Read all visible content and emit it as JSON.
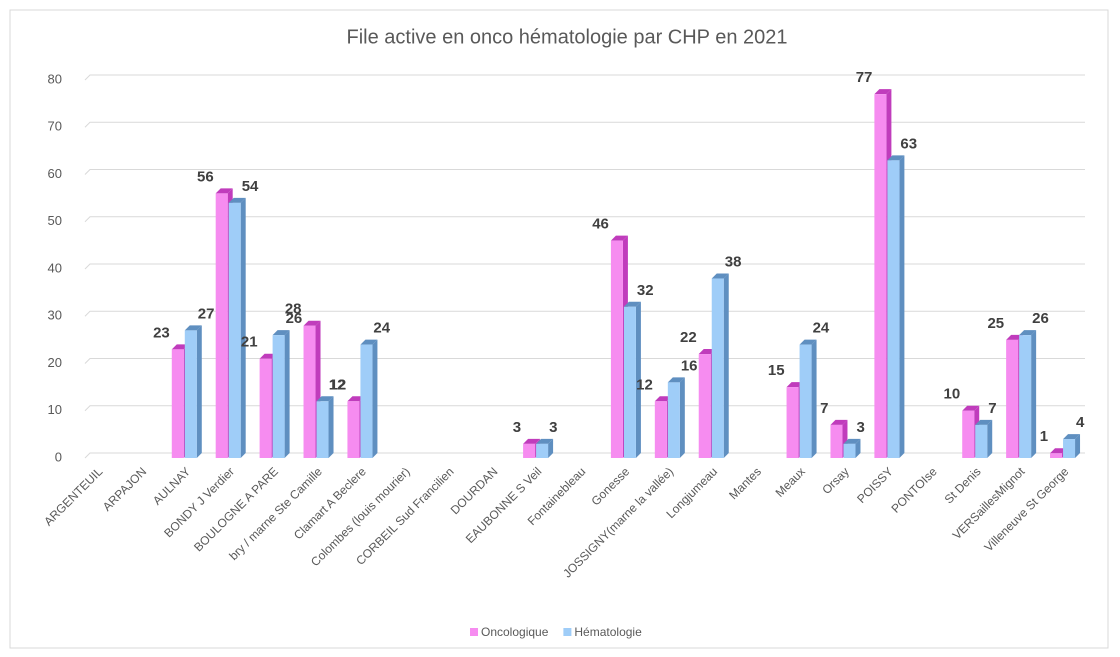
{
  "chart_data": {
    "type": "bar3d",
    "title": "File active en onco hématologie par CHP en 2021",
    "categories": [
      "ARGENTEUIL",
      "ARPAJON",
      "AULNAY",
      "BONDY J Verdier",
      "BOULOGNE A PARE",
      "bry / marne Ste Camille",
      "Clamart A Beclere",
      "Colombes (louis mourier)",
      "CORBEIL Sud Francilien",
      "DOURDAN",
      "EAUBONNE S Veil",
      "Fontainebleau",
      "Gonesse",
      "JOSSIGNY(marne la vallée)",
      "Longjumeau",
      "Mantes",
      "Meaux",
      "Orsay",
      "POISSY",
      "PONTOIse",
      "St Denis",
      "VERSaillesMignot",
      "Villeneuve St George"
    ],
    "series": [
      {
        "name": "Oncologique",
        "color": "#f68cf0",
        "side": "#c03cbc",
        "values": [
          null,
          null,
          23,
          56,
          21,
          28,
          12,
          null,
          null,
          null,
          3,
          null,
          46,
          12,
          22,
          null,
          15,
          7,
          77,
          null,
          10,
          25,
          1
        ]
      },
      {
        "name": "Hématologie",
        "color": "#9fcdf8",
        "side": "#5f8fc0",
        "values": [
          null,
          null,
          27,
          54,
          26,
          12,
          24,
          null,
          null,
          null,
          3,
          null,
          32,
          16,
          38,
          null,
          24,
          3,
          63,
          null,
          7,
          26,
          4
        ]
      }
    ],
    "ylim": [
      0,
      80
    ],
    "yticks": [
      0,
      10,
      20,
      30,
      40,
      50,
      60,
      70,
      80
    ],
    "grid": true,
    "legend": "bottom"
  }
}
